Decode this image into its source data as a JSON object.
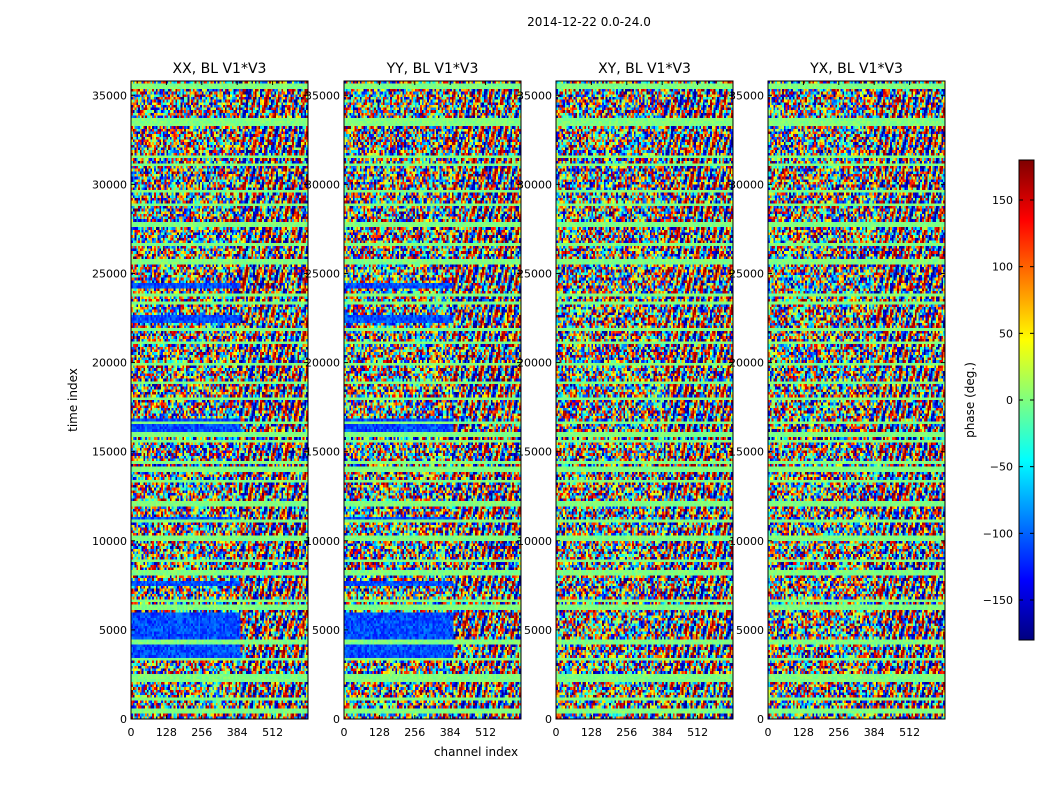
{
  "figure": {
    "suptitle": "2014-12-22 0.0-24.0",
    "shared_xlabel": "channel index",
    "shared_ylabel": "time index"
  },
  "chart_data": [
    {
      "type": "heatmap",
      "title": "XX, BL V1*V3",
      "xlabel": "channel index",
      "ylabel": "time index",
      "xlim": [
        0,
        640
      ],
      "ylim": [
        0,
        35800
      ],
      "xticks": [
        0,
        128,
        256,
        384,
        512
      ],
      "yticks": [
        0,
        5000,
        10000,
        15000,
        20000,
        25000,
        30000,
        35000
      ],
      "colormap": "jet",
      "value_range": [
        -180,
        180
      ]
    },
    {
      "type": "heatmap",
      "title": "YY, BL V1*V3",
      "xlabel": "",
      "ylabel": "",
      "xlim": [
        0,
        640
      ],
      "ylim": [
        0,
        35800
      ],
      "xticks": [
        0,
        128,
        256,
        384,
        512
      ],
      "yticks": [
        0,
        5000,
        10000,
        15000,
        20000,
        25000,
        30000,
        35000
      ],
      "colormap": "jet",
      "value_range": [
        -180,
        180
      ]
    },
    {
      "type": "heatmap",
      "title": "XY, BL V1*V3",
      "xlabel": "",
      "ylabel": "",
      "xlim": [
        0,
        640
      ],
      "ylim": [
        0,
        35800
      ],
      "xticks": [
        0,
        128,
        256,
        384,
        512
      ],
      "yticks": [
        0,
        5000,
        10000,
        15000,
        20000,
        25000,
        30000,
        35000
      ],
      "colormap": "jet",
      "value_range": [
        -180,
        180
      ]
    },
    {
      "type": "heatmap",
      "title": "YX, BL V1*V3",
      "xlabel": "",
      "ylabel": "",
      "xlim": [
        0,
        640
      ],
      "ylim": [
        0,
        35800
      ],
      "xticks": [
        0,
        128,
        256,
        384,
        512
      ],
      "yticks": [
        0,
        5000,
        10000,
        15000,
        20000,
        25000,
        30000,
        35000
      ],
      "colormap": "jet",
      "value_range": [
        -180,
        180
      ]
    }
  ],
  "colorbar": {
    "label": "phase (deg.)",
    "range": [
      -180,
      180
    ],
    "ticks": [
      150,
      100,
      50,
      0,
      -50,
      -100,
      -150
    ],
    "tick_labels": [
      "150",
      "100",
      "50",
      "0",
      "−50",
      "−100",
      "−150"
    ],
    "colors": [
      "#00007f",
      "#0000ff",
      "#007fff",
      "#00ffff",
      "#7fff7f",
      "#ffff00",
      "#ff7f00",
      "#ff0000",
      "#7f0000"
    ]
  }
}
